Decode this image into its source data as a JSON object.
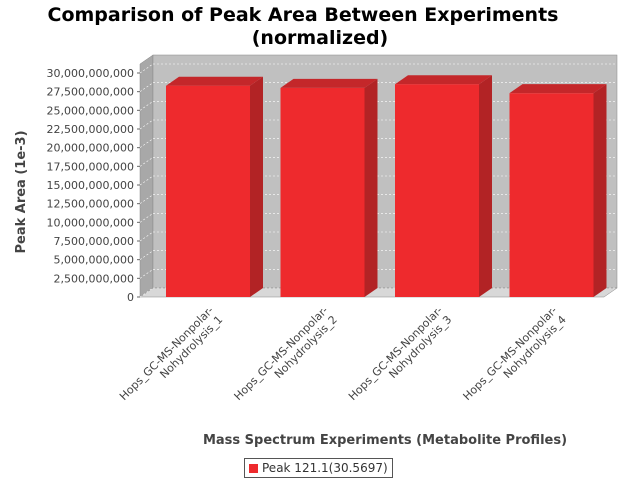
{
  "chart_data": {
    "type": "bar",
    "title_line1": "Comparison of Peak Area Between Experiments",
    "title_line2": "(normalized)",
    "xlabel": "Mass Spectrum Experiments (Metabolite Profiles)",
    "ylabel": "Peak Area (1e-3)",
    "ylim": [
      0,
      30000000000
    ],
    "yticks": [
      "0",
      "2,500,000,000",
      "5,000,000,000",
      "7,500,000,000",
      "10,000,000,000",
      "12,500,000,000",
      "15,000,000,000",
      "17,500,000,000",
      "20,000,000,000",
      "22,500,000,000",
      "25,000,000,000",
      "27,500,000,000",
      "30,000,000,000"
    ],
    "categories": [
      [
        "Hops_GC-MS-Nonpolar-",
        "Nohydrolysis_1"
      ],
      [
        "Hops_GC-MS-Nonpolar-",
        "Nohydrolysis_2"
      ],
      [
        "Hops_GC-MS-Nonpolar-",
        "Nohydrolysis_3"
      ],
      [
        "Hops_GC-MS-Nonpolar-",
        "Nohydrolysis_4"
      ]
    ],
    "series": [
      {
        "name": "Peak 121.1(30.5697)",
        "values": [
          28300000000,
          28000000000,
          28500000000,
          27300000000
        ]
      }
    ],
    "grid": true,
    "legend": "bottom"
  },
  "colors": {
    "bar_front": "#ee2a2d",
    "bar_side": "#b22325",
    "bar_top": "#c4272a",
    "plot_bg": "#c0c0c0",
    "plot_side": "#a8a8a8",
    "plot_floor": "#d8d8d8"
  }
}
